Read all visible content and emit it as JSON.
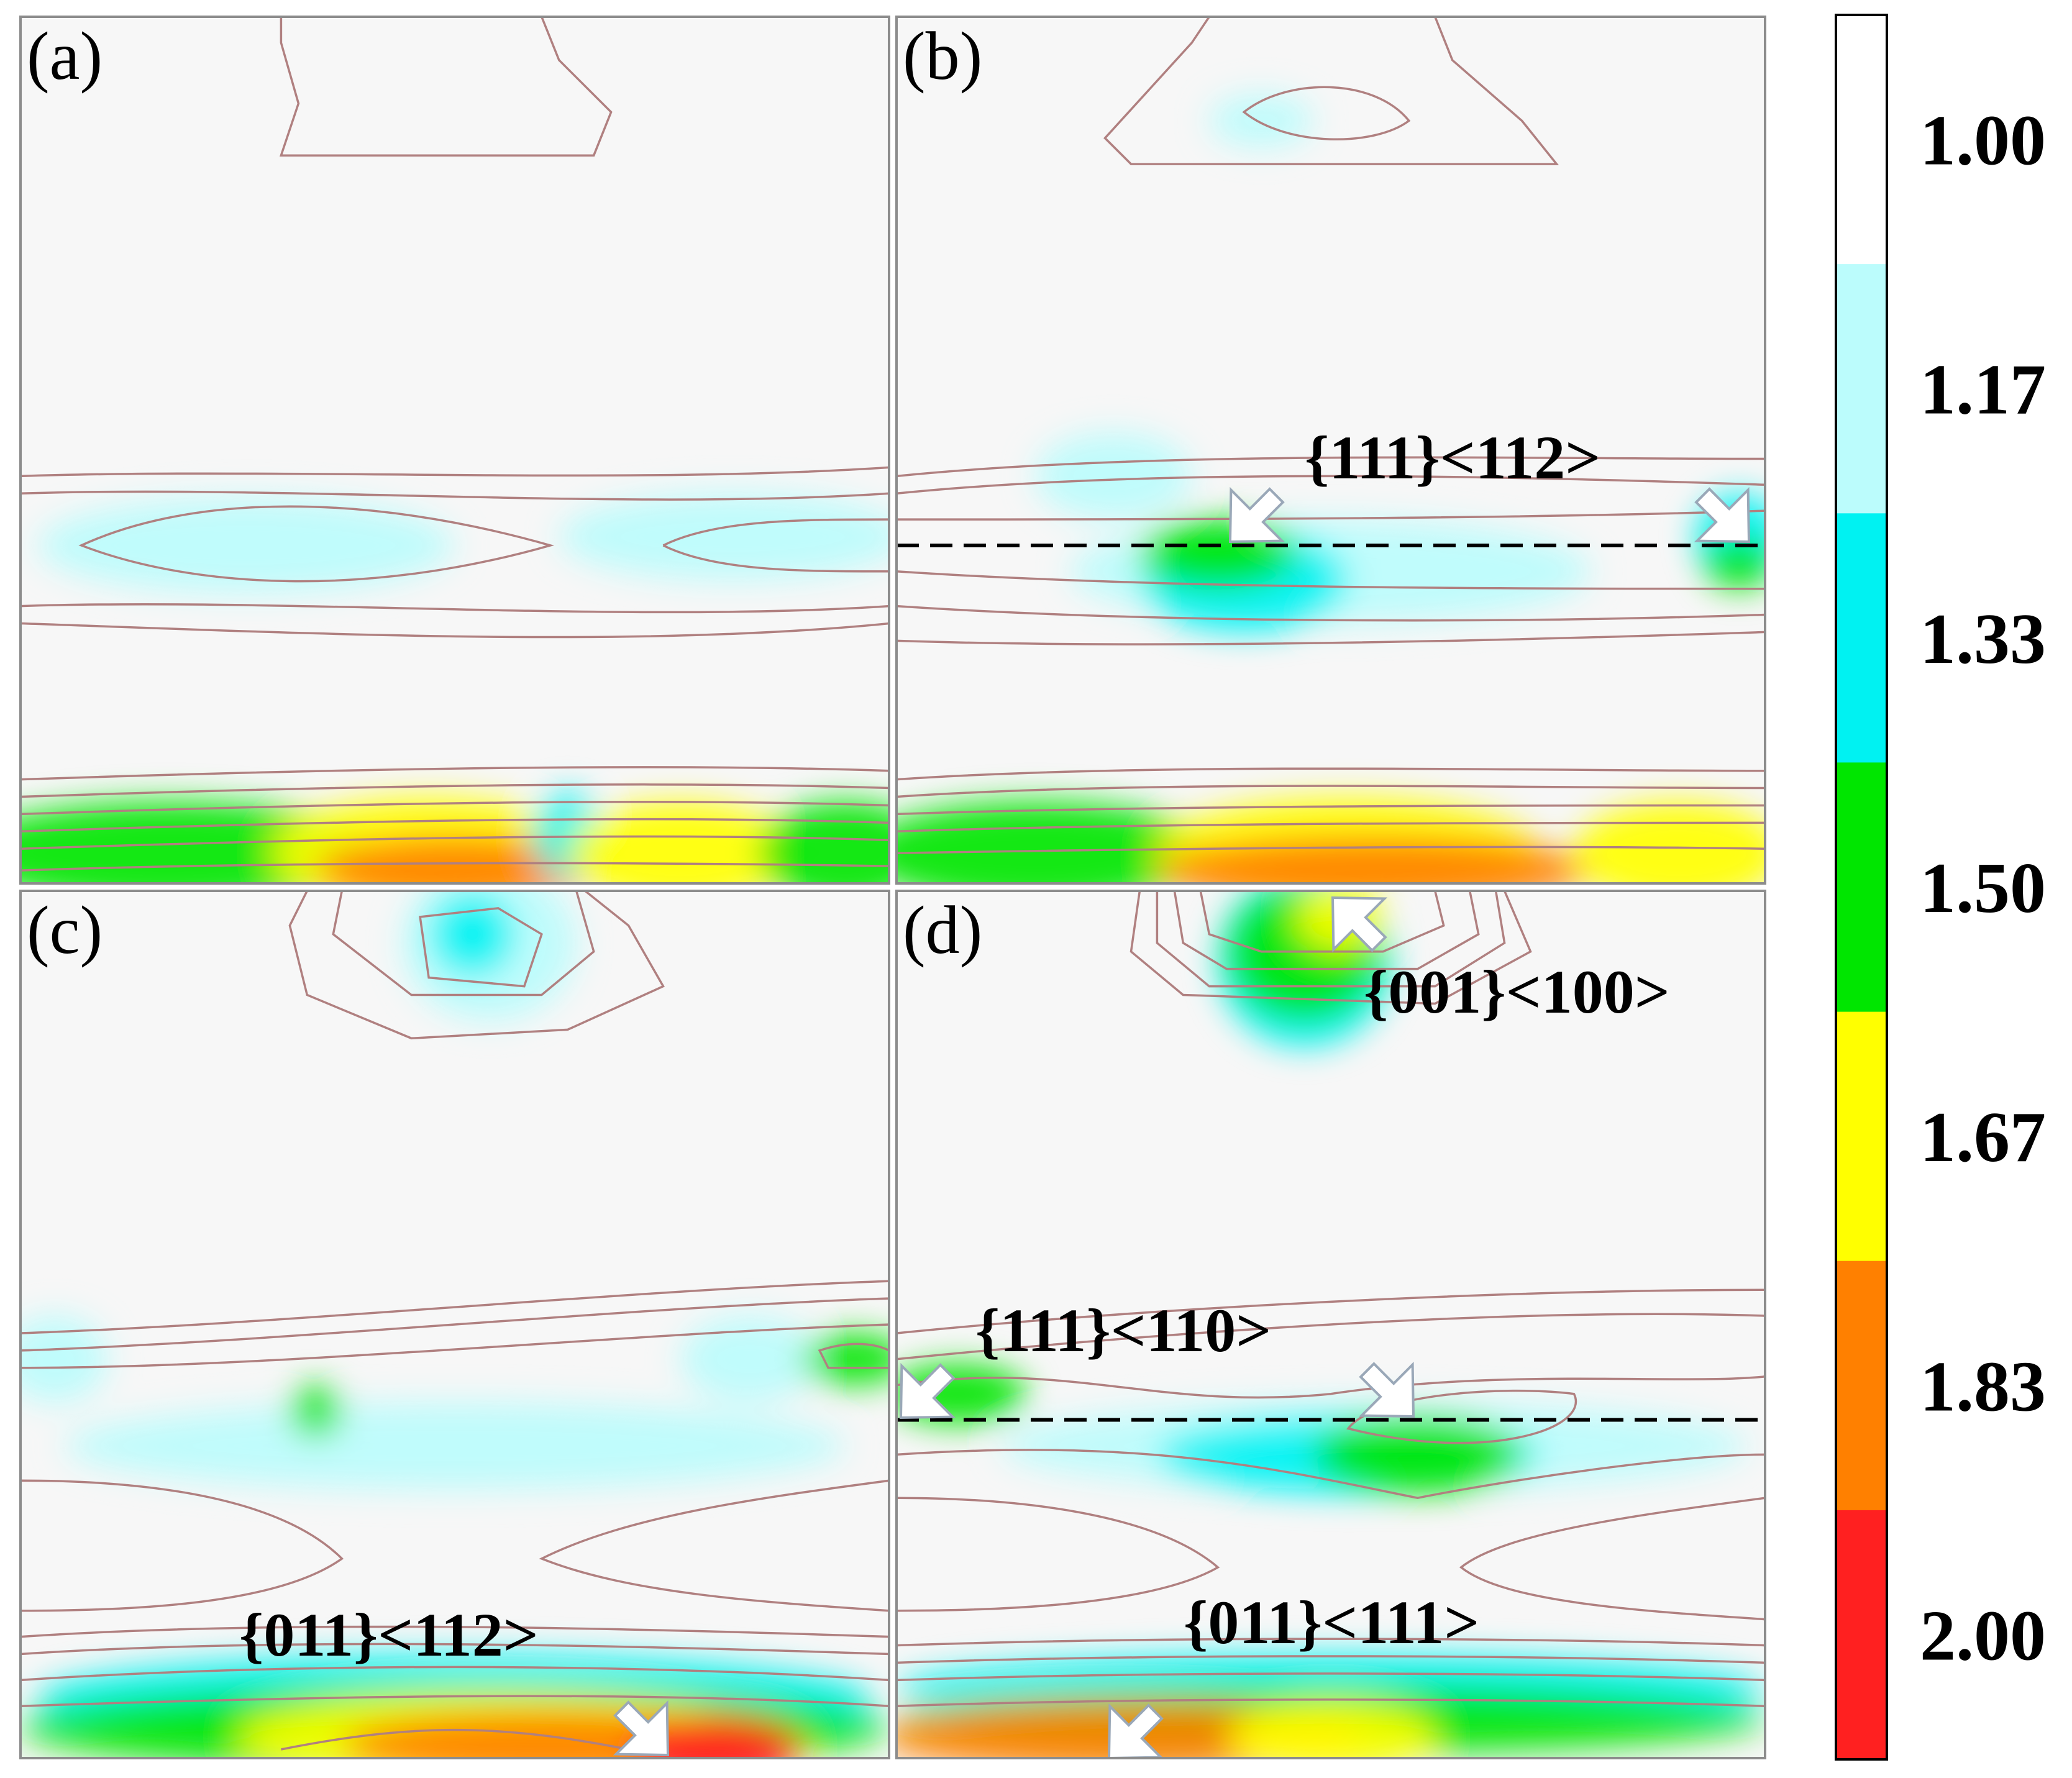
{
  "chart_data": {
    "type": "heatmap",
    "panels": [
      {
        "letter": "(a)",
        "annotations": [],
        "dashed_line": false,
        "blobs": [
          {
            "level": "1.17",
            "x": 0.26,
            "y": 0.61,
            "rx": 0.24,
            "ry": 0.055
          },
          {
            "level": "1.17",
            "x": 0.82,
            "y": 0.6,
            "rx": 0.2,
            "ry": 0.05
          },
          {
            "level": "1.50",
            "x": 0.17,
            "y": 0.965,
            "rx": 0.24,
            "ry": 0.06
          },
          {
            "level": "1.67",
            "x": 0.47,
            "y": 0.965,
            "rx": 0.18,
            "ry": 0.065
          },
          {
            "level": "1.83",
            "x": 0.5,
            "y": 0.985,
            "rx": 0.16,
            "ry": 0.04
          },
          {
            "level": "1.33",
            "x": 0.63,
            "y": 0.945,
            "rx": 0.04,
            "ry": 0.05
          },
          {
            "level": "1.67",
            "x": 0.76,
            "y": 0.965,
            "rx": 0.13,
            "ry": 0.06
          },
          {
            "level": "1.50",
            "x": 0.95,
            "y": 0.965,
            "rx": 0.1,
            "ry": 0.06
          }
        ]
      },
      {
        "letter": "(b)",
        "annotations": [
          {
            "text": "{111}<112>",
            "ax": 0.47,
            "ay": 0.5
          }
        ],
        "dashed_line": true,
        "dashed_y": 0.61,
        "blobs": [
          {
            "level": "1.17",
            "x": 0.25,
            "y": 0.53,
            "rx": 0.09,
            "ry": 0.05
          },
          {
            "level": "1.17",
            "x": 0.5,
            "y": 0.64,
            "rx": 0.3,
            "ry": 0.06
          },
          {
            "level": "1.33",
            "x": 0.4,
            "y": 0.65,
            "rx": 0.12,
            "ry": 0.06
          },
          {
            "level": "1.50",
            "x": 0.37,
            "y": 0.62,
            "rx": 0.09,
            "ry": 0.04
          },
          {
            "level": "1.33",
            "x": 0.97,
            "y": 0.6,
            "rx": 0.05,
            "ry": 0.05
          },
          {
            "level": "1.50",
            "x": 0.97,
            "y": 0.63,
            "rx": 0.04,
            "ry": 0.03
          },
          {
            "level": "1.17",
            "x": 0.42,
            "y": 0.12,
            "rx": 0.06,
            "ry": 0.03
          },
          {
            "level": "1.50",
            "x": 0.16,
            "y": 0.965,
            "rx": 0.2,
            "ry": 0.06
          },
          {
            "level": "1.67",
            "x": 0.52,
            "y": 0.965,
            "rx": 0.22,
            "ry": 0.065
          },
          {
            "level": "1.83",
            "x": 0.55,
            "y": 0.985,
            "rx": 0.25,
            "ry": 0.04
          },
          {
            "level": "1.67",
            "x": 0.9,
            "y": 0.965,
            "rx": 0.12,
            "ry": 0.06
          }
        ]
      },
      {
        "letter": "(c)",
        "annotations": [
          {
            "text": "{011}<112>",
            "ax": 0.27,
            "ay": 0.97
          }
        ],
        "dashed_line": false,
        "blobs": [
          {
            "level": "1.17",
            "x": 0.54,
            "y": 0.06,
            "rx": 0.1,
            "ry": 0.09
          },
          {
            "level": "1.33",
            "x": 0.52,
            "y": 0.05,
            "rx": 0.05,
            "ry": 0.05
          },
          {
            "level": "1.17",
            "x": 0.04,
            "y": 0.54,
            "rx": 0.06,
            "ry": 0.05
          },
          {
            "level": "1.17",
            "x": 0.5,
            "y": 0.64,
            "rx": 0.45,
            "ry": 0.05
          },
          {
            "level": "1.17",
            "x": 0.84,
            "y": 0.54,
            "rx": 0.08,
            "ry": 0.05
          },
          {
            "level": "1.50",
            "x": 0.96,
            "y": 0.54,
            "rx": 0.06,
            "ry": 0.03
          },
          {
            "level": "1.50",
            "x": 0.34,
            "y": 0.6,
            "rx": 0.03,
            "ry": 0.03
          },
          {
            "level": "1.33",
            "x": 0.5,
            "y": 0.93,
            "rx": 0.48,
            "ry": 0.05
          },
          {
            "level": "1.50",
            "x": 0.5,
            "y": 0.965,
            "rx": 0.5,
            "ry": 0.05
          },
          {
            "level": "1.67",
            "x": 0.55,
            "y": 0.975,
            "rx": 0.3,
            "ry": 0.05
          },
          {
            "level": "1.83",
            "x": 0.62,
            "y": 0.985,
            "rx": 0.25,
            "ry": 0.04
          },
          {
            "level": "2.00",
            "x": 0.8,
            "y": 0.99,
            "rx": 0.1,
            "ry": 0.04
          }
        ]
      },
      {
        "letter": "(d)",
        "annotations": [
          {
            "text": "{001}<100>",
            "ax": 0.54,
            "ay": 0.12
          },
          {
            "text": "{111}<110>",
            "ax": 0.1,
            "ay": 0.5
          },
          {
            "text": "{011}<111>",
            "ax": 0.34,
            "ay": 0.94
          }
        ],
        "dashed_line": true,
        "dashed_y": 0.61,
        "blobs": [
          {
            "level": "1.33",
            "x": 0.47,
            "y": 0.08,
            "rx": 0.1,
            "ry": 0.1
          },
          {
            "level": "1.50",
            "x": 0.47,
            "y": 0.07,
            "rx": 0.09,
            "ry": 0.08
          },
          {
            "level": "1.67",
            "x": 0.51,
            "y": 0.03,
            "rx": 0.05,
            "ry": 0.04
          },
          {
            "level": "1.17",
            "x": 0.55,
            "y": 0.64,
            "rx": 0.43,
            "ry": 0.05
          },
          {
            "level": "1.50",
            "x": 0.07,
            "y": 0.58,
            "rx": 0.08,
            "ry": 0.035
          },
          {
            "level": "1.33",
            "x": 0.52,
            "y": 0.65,
            "rx": 0.22,
            "ry": 0.045
          },
          {
            "level": "1.50",
            "x": 0.6,
            "y": 0.65,
            "rx": 0.12,
            "ry": 0.045
          },
          {
            "level": "1.33",
            "x": 0.5,
            "y": 0.92,
            "rx": 0.5,
            "ry": 0.04
          },
          {
            "level": "1.50",
            "x": 0.5,
            "y": 0.955,
            "rx": 0.5,
            "ry": 0.04
          },
          {
            "level": "1.83",
            "x": 0.26,
            "y": 0.975,
            "rx": 0.28,
            "ry": 0.04
          },
          {
            "level": "1.67",
            "x": 0.5,
            "y": 0.975,
            "rx": 0.12,
            "ry": 0.04
          }
        ]
      }
    ],
    "colorbar": {
      "ticks": [
        "1.00",
        "1.17",
        "1.33",
        "1.50",
        "1.67",
        "1.83",
        "2.00"
      ],
      "bands": [
        "#ffffff",
        "#bbfcfc",
        "#00f2f2",
        "#00e600",
        "#ffff00",
        "#ff8000",
        "#ff2020"
      ]
    },
    "background": "#f7f7f7",
    "contour_color": "#b08080",
    "dashed_line_color": "#000000",
    "arrow_fill": "#ffffff",
    "arrow_stroke": "#9aa8b8"
  }
}
